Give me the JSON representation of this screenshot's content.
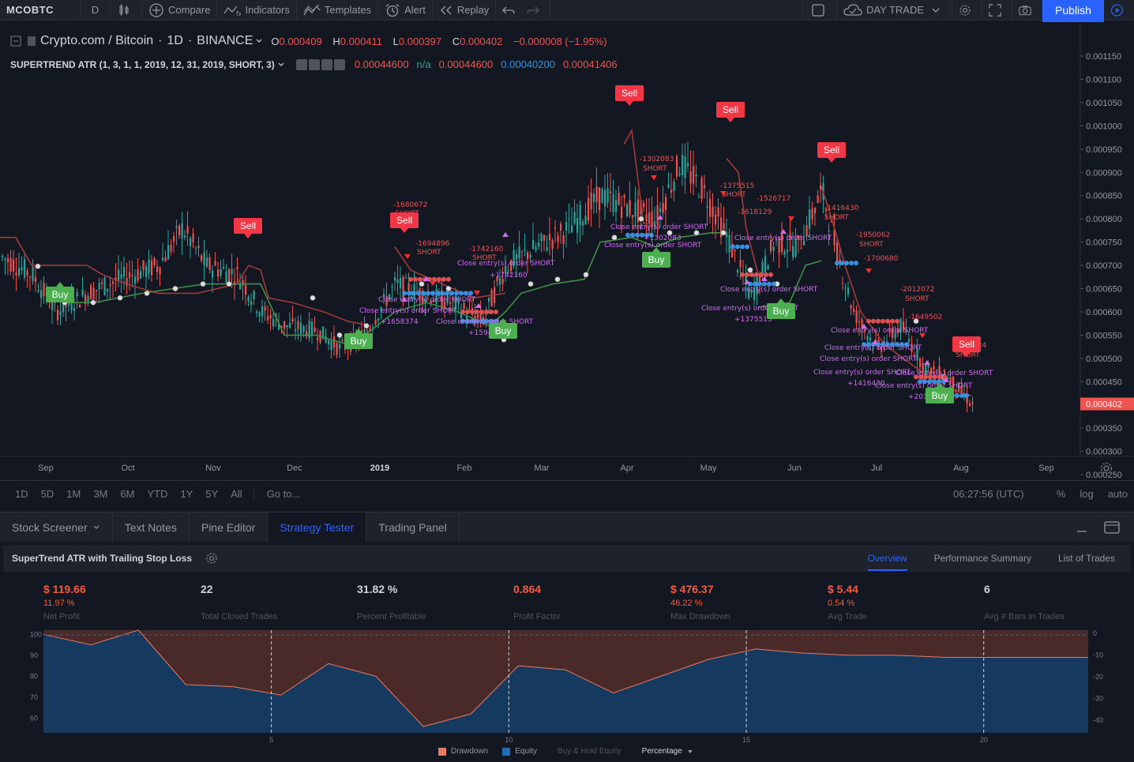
{
  "toolbar": {
    "symbol": "MCOBTC",
    "interval": "D",
    "compare": "Compare",
    "indicators": "Indicators",
    "templates": "Templates",
    "alert": "Alert",
    "replay": "Replay",
    "layout_name": "DAY TRADE",
    "publish": "Publish"
  },
  "legend": {
    "symbol_title": "Crypto.com / Bitcoin",
    "interval": "1D",
    "exchange": "BINANCE",
    "open_label": "O",
    "open": "0.000409",
    "high_label": "H",
    "high": "0.000411",
    "low_label": "L",
    "low": "0.000397",
    "close_label": "C",
    "close": "0.000402",
    "change": "−0.000008 (−1.95%)",
    "indicator": "SUPERTREND ATR (1, 3, 1, 1, 2019, 12, 31, 2019, SHORT, 3)",
    "ind_v1": "0.00044600",
    "ind_v2": "n/a",
    "ind_v3": "0.00044600",
    "ind_v4": "0.00040200",
    "ind_v5": "0.00041406"
  },
  "price_axis": {
    "ticks": [
      "0.001150",
      "0.001100",
      "0.001050",
      "0.001000",
      "0.000950",
      "0.000900",
      "0.000850",
      "0.000800",
      "0.000750",
      "0.000700",
      "0.000650",
      "0.000600",
      "0.000550",
      "0.000500",
      "0.000450",
      "0.000400",
      "0.000350",
      "0.000300",
      "0.000250"
    ],
    "current_price": "0.000402"
  },
  "time_axis": {
    "labels": [
      "Sep",
      "Oct",
      "Nov",
      "Dec",
      "2019",
      "Jan",
      "Feb",
      "Mar",
      "Apr",
      "May",
      "Jun",
      "Jul",
      "Aug",
      "Sep"
    ]
  },
  "signals": {
    "buy": "Buy",
    "sell": "Sell",
    "close_text": "Close entry(s) order SHORT",
    "short_text": "SHORT",
    "trade_labels": [
      "-1680672",
      "-1694896",
      "-1742160",
      "-1302083",
      "-1375515",
      "-1526717",
      "-1416430",
      "-1700680",
      "-1950062",
      "-2012072",
      "-2435024",
      "+1658374",
      "+1594896",
      "+1742160",
      "+1302083",
      "+1375515",
      "+1416430",
      "+2012072",
      "-1618129",
      "-1649502"
    ]
  },
  "range_bar": {
    "ranges": [
      "1D",
      "5D",
      "1M",
      "3M",
      "6M",
      "YTD",
      "1Y",
      "5Y",
      "All"
    ],
    "goto": "Go to...",
    "clock": "06:27:56 (UTC)",
    "percent": "%",
    "log": "log",
    "auto": "auto"
  },
  "panel_tabs": [
    "Stock Screener",
    "Text Notes",
    "Pine Editor",
    "Strategy Tester",
    "Trading Panel"
  ],
  "strategy": {
    "title": "SuperTrend ATR with Trailing Stop Loss",
    "tabs": [
      "Overview",
      "Performance Summary",
      "List of Trades"
    ],
    "stats": [
      {
        "value": "$ 119.66",
        "sub": "11.97 %",
        "label": "Net Profit",
        "neg": true
      },
      {
        "value": "22",
        "sub": "",
        "label": "Total Closed Trades",
        "neg": false
      },
      {
        "value": "31.82 %",
        "sub": "",
        "label": "Percent Profitable",
        "neg": false
      },
      {
        "value": "0.864",
        "sub": "",
        "label": "Profit Factor",
        "neg": true
      },
      {
        "value": "$ 476.37",
        "sub": "46.22 %",
        "label": "Max Drawdown",
        "neg": true
      },
      {
        "value": "$ 5.44",
        "sub": "0.54 %",
        "label": "Avg Trade",
        "neg": true
      },
      {
        "value": "6",
        "sub": "",
        "label": "Avg # Bars in Trades",
        "neg": false
      }
    ],
    "equity_chart": {
      "left_ticks": [
        "100",
        "90",
        "80",
        "70",
        "60"
      ],
      "right_ticks": [
        "0",
        "-10",
        "-20",
        "-30",
        "-40"
      ],
      "x_ticks": [
        "5",
        "10",
        "15",
        "20"
      ],
      "equity": [
        100,
        95,
        102,
        76,
        75,
        71,
        86,
        80,
        56,
        62,
        85,
        83,
        72,
        80,
        88,
        93,
        91,
        90,
        90,
        89,
        89,
        89,
        89
      ],
      "legend": {
        "drawdown": "Drawdown",
        "equity": "Equity",
        "buy_hold": "Buy & Hold Equity",
        "mode": "Percentage"
      }
    }
  },
  "colors": {
    "bg": "#131722",
    "up": "#26a69a",
    "down": "#ef5350",
    "accent": "#2962ff",
    "equity": "#163a5f",
    "drawdown": "#4a2a29"
  }
}
